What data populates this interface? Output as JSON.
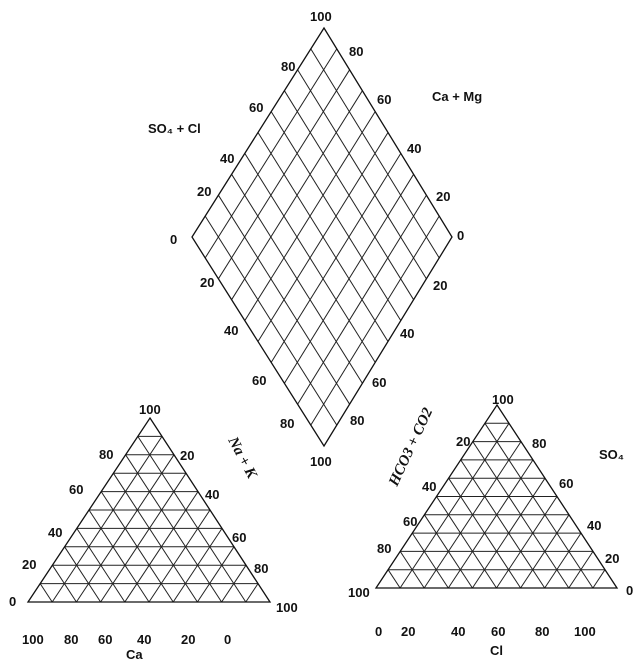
{
  "chart_data": {
    "type": "ternary-diamond",
    "subplots": [
      {
        "name": "diamond",
        "grid": "on",
        "divisions": 10,
        "axis_labels": {
          "upper_left": "SO₄ + Cl",
          "upper_right": "Ca + Mg"
        },
        "ticks": {
          "top": "100",
          "upper_left": [
            "80",
            "60",
            "40",
            "20"
          ],
          "upper_right": [
            "80",
            "60",
            "40",
            "20"
          ],
          "left": "0",
          "right": "0",
          "lower_left": [
            "20",
            "40",
            "60",
            "80"
          ],
          "lower_right": [
            "20",
            "40",
            "60",
            "80"
          ],
          "bottom": "100"
        }
      },
      {
        "name": "cation-triangle",
        "grid": "on",
        "divisions": 10,
        "axis_labels": {
          "right_side": "Na + K",
          "bottom": "Ca"
        },
        "ticks": {
          "apex": "100",
          "left_side": [
            "80",
            "60",
            "40",
            "20"
          ],
          "left_vertex": "0",
          "right_side": [
            "20",
            "40",
            "60",
            "80"
          ],
          "right_vertex": "100",
          "bottom": [
            "100",
            "80",
            "60",
            "40",
            "20",
            "0"
          ]
        }
      },
      {
        "name": "anion-triangle",
        "grid": "on",
        "divisions": 10,
        "axis_labels": {
          "left_side": "HCO3 + CO2",
          "right_side": "SO₄",
          "bottom": "Cl"
        },
        "ticks": {
          "apex": "100",
          "left_side": [
            "20",
            "40",
            "60",
            "80"
          ],
          "left_vertex": "100",
          "right_side": [
            "80",
            "60",
            "40",
            "20"
          ],
          "right_vertex": "0",
          "bottom": [
            "0",
            "20",
            "40",
            "60",
            "80",
            "100"
          ]
        }
      }
    ]
  }
}
